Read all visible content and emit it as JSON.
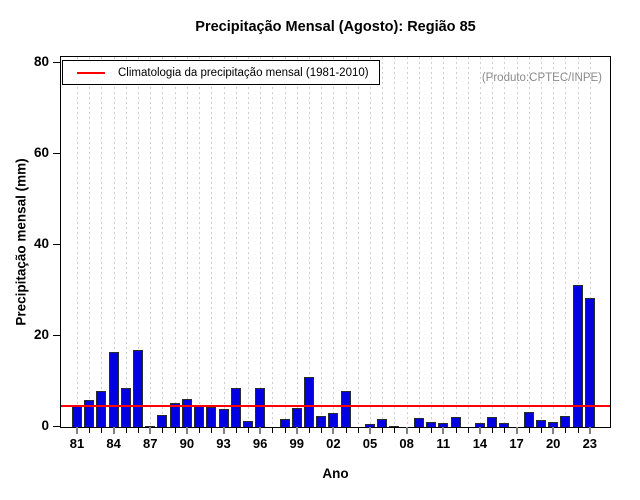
{
  "header": {
    "title": "Precipitação Mensal (Agosto): Região 85"
  },
  "chart_data": {
    "type": "bar",
    "title": "Precipitação Mensal (Agosto): Região 85",
    "xlabel": "Ano",
    "ylabel": "Precipitação mensal (mm)",
    "ylim": [
      0,
      80
    ],
    "yticks": [
      0,
      20,
      40,
      60,
      80
    ],
    "x_label_every": 3,
    "grid": "vertical-dashed",
    "legend": "Climatologia da precipitação mensal (1981-2010)",
    "legend_position": "top-left",
    "annotation": "(Produto:CPTEC/INPE)",
    "climatology_value": 4.7,
    "bar_color": "#0000e0",
    "line_color": "#ff0000",
    "annotation_color": "#8a8a8a",
    "years": [
      1981,
      1982,
      1983,
      1984,
      1985,
      1986,
      1987,
      1988,
      1989,
      1990,
      1991,
      1992,
      1993,
      1994,
      1995,
      1996,
      1997,
      1998,
      1999,
      2000,
      2001,
      2002,
      2003,
      2004,
      2005,
      2006,
      2007,
      2008,
      2009,
      2010,
      2011,
      2012,
      2013,
      2014,
      2015,
      2016,
      2017,
      2018,
      2019,
      2020,
      2021,
      2022,
      2023
    ],
    "values": [
      4.7,
      6.0,
      8.0,
      16.6,
      8.5,
      17.0,
      0.2,
      2.6,
      5.2,
      6.1,
      4.9,
      4.5,
      3.9,
      8.6,
      1.3,
      8.6,
      0.0,
      1.8,
      4.2,
      11.0,
      2.4,
      3.0,
      7.9,
      0.0,
      0.7,
      1.7,
      0.1,
      0.0,
      1.9,
      1.1,
      0.9,
      2.2,
      0.0,
      0.9,
      2.3,
      0.9,
      0.0,
      3.2,
      1.6,
      1.0,
      2.4,
      31.3,
      28.5
    ],
    "x_tick_labels": [
      "81",
      "84",
      "87",
      "90",
      "93",
      "96",
      "99",
      "02",
      "05",
      "08",
      "11",
      "14",
      "17",
      "20",
      "23"
    ]
  }
}
